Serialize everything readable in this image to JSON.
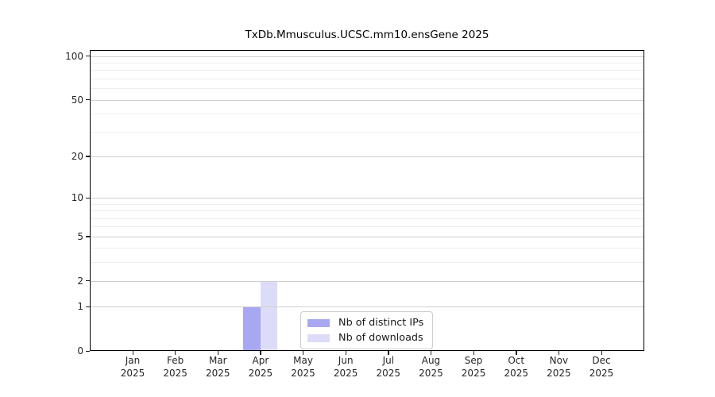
{
  "chart_data": {
    "type": "bar",
    "title": "TxDb.Mmusculus.UCSC.mm10.ensGene 2025",
    "categories": [
      "Jan",
      "Feb",
      "Mar",
      "Apr",
      "May",
      "Jun",
      "Jul",
      "Aug",
      "Sep",
      "Oct",
      "Nov",
      "Dec"
    ],
    "year_label": "2025",
    "series": [
      {
        "name": "Nb of distinct IPs",
        "color": "#a7a7f2",
        "values": [
          0,
          0,
          0,
          1,
          0,
          0,
          0,
          0,
          0,
          0,
          0,
          0
        ]
      },
      {
        "name": "Nb of downloads",
        "color": "#dcdcf8",
        "values": [
          0,
          0,
          0,
          2,
          0,
          0,
          0,
          0,
          0,
          0,
          0,
          0
        ]
      }
    ],
    "yscale": "log1p",
    "ylim": [
      0,
      110
    ],
    "yticks": [
      0,
      1,
      2,
      5,
      10,
      20,
      50,
      100
    ],
    "yticks_minor": [
      3,
      4,
      6,
      7,
      8,
      9,
      30,
      40,
      60,
      70,
      80,
      90
    ],
    "grid": "horizontal",
    "legend_position": "inside-bottom-center"
  },
  "colors": {
    "major_grid": "#cfcfcf",
    "minor_grid": "#eeeeee",
    "spine": "#000000",
    "tick_text": "#262626",
    "legend_border": "#cccccc",
    "background": "#ffffff"
  }
}
